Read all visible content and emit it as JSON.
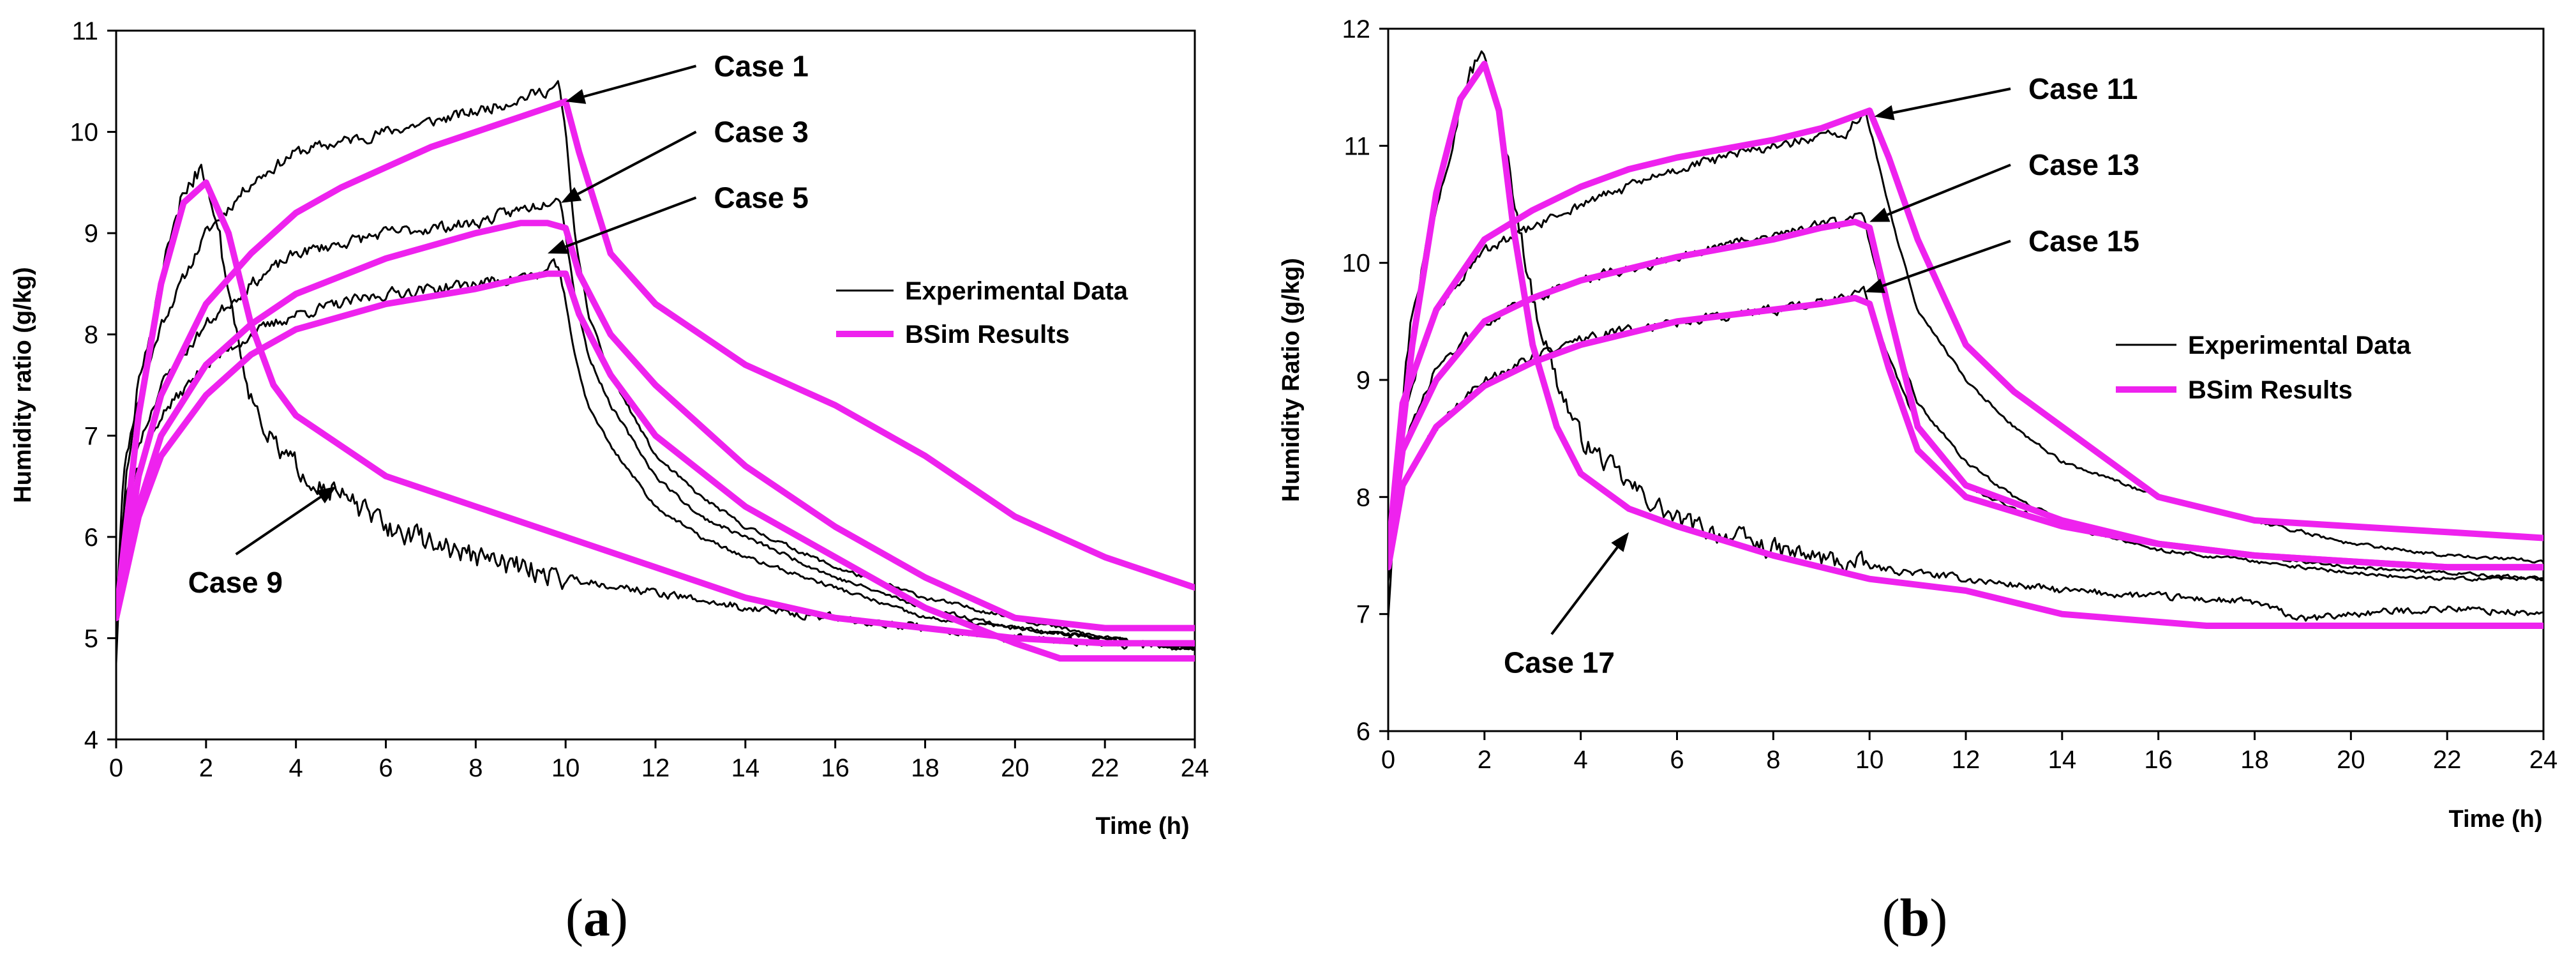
{
  "chart_data": [
    {
      "type": "line",
      "panel_label": "a",
      "xlabel": "Time (h)",
      "ylabel": "Humidity ratio (g/kg)",
      "xlim": [
        0,
        24
      ],
      "ylim": [
        4,
        11
      ],
      "xticks": [
        0,
        2,
        4,
        6,
        8,
        10,
        12,
        14,
        16,
        18,
        20,
        22,
        24
      ],
      "yticks": [
        4,
        5,
        6,
        7,
        8,
        9,
        10,
        11
      ],
      "grid": false,
      "legend": {
        "placement": "right-middle",
        "entries": [
          {
            "label": "Experimental Data",
            "color": "#000000"
          },
          {
            "label": "BSim Results",
            "color": "#ee22ee"
          }
        ]
      },
      "annotations": [
        {
          "text": "Case 1",
          "x": 13.3,
          "y": 10.55,
          "arrow_to": [
            10.0,
            10.3
          ]
        },
        {
          "text": "Case 3",
          "x": 13.3,
          "y": 9.9,
          "arrow_to": [
            9.9,
            9.3
          ]
        },
        {
          "text": "Case 5",
          "x": 13.3,
          "y": 9.25,
          "arrow_to": [
            9.6,
            8.8
          ]
        },
        {
          "text": "Case 9",
          "x": 1.6,
          "y": 5.45,
          "arrow_to": [
            4.9,
            6.5
          ]
        }
      ],
      "series": [
        {
          "kind": "Experimental Data",
          "color": "#000000",
          "noise": 0.09,
          "seed": 11,
          "x": [
            0,
            0.15,
            0.4,
            1.0,
            2.0,
            3.0,
            4.0,
            6.0,
            8.0,
            9.5,
            9.85,
            10.0,
            10.2,
            10.5,
            11,
            12,
            13,
            14,
            16,
            18,
            20,
            22,
            24
          ],
          "y": [
            5.2,
            6.6,
            7.2,
            8.1,
            9.0,
            9.5,
            9.8,
            10.0,
            10.2,
            10.4,
            10.45,
            10.0,
            9.0,
            8.2,
            7.6,
            6.8,
            6.4,
            6.1,
            5.7,
            5.4,
            5.2,
            5.0,
            4.9
          ]
        },
        {
          "kind": "Experimental Data",
          "color": "#000000",
          "noise": 0.09,
          "seed": 23,
          "x": [
            0,
            0.15,
            0.4,
            1.0,
            2.0,
            3.0,
            4.0,
            6.0,
            8.0,
            9.5,
            9.85,
            10.0,
            10.2,
            10.5,
            11,
            12,
            13,
            14,
            16,
            18,
            20,
            22,
            24
          ],
          "y": [
            5.2,
            6.2,
            6.8,
            7.5,
            8.1,
            8.5,
            8.8,
            9.0,
            9.1,
            9.3,
            9.4,
            9.0,
            8.4,
            7.8,
            7.3,
            6.6,
            6.2,
            6.0,
            5.6,
            5.3,
            5.1,
            5.0,
            4.9
          ]
        },
        {
          "kind": "Experimental Data",
          "color": "#000000",
          "noise": 0.09,
          "seed": 37,
          "x": [
            0,
            0.15,
            0.4,
            1.0,
            2.0,
            3.0,
            4.0,
            6.0,
            8.0,
            9.5,
            9.85,
            10.0,
            10.2,
            10.5,
            11,
            12,
            13,
            14,
            16,
            18,
            20,
            22,
            24
          ],
          "y": [
            5.2,
            6.0,
            6.6,
            7.2,
            7.7,
            8.0,
            8.2,
            8.4,
            8.5,
            8.6,
            8.7,
            8.3,
            7.8,
            7.3,
            6.9,
            6.3,
            6.0,
            5.8,
            5.5,
            5.2,
            5.1,
            5.0,
            4.9
          ]
        },
        {
          "kind": "Experimental Data",
          "color": "#000000",
          "noise": 0.18,
          "seed": 51,
          "x": [
            0,
            0.2,
            0.5,
            1.0,
            1.5,
            1.9,
            2.2,
            2.6,
            3.0,
            3.5,
            4.0,
            5.0,
            6.0,
            8.0,
            10.0,
            12.0,
            14.0,
            16.0,
            18.0,
            20.0,
            22.0,
            24.0
          ],
          "y": [
            4.8,
            6.5,
            7.5,
            8.5,
            9.4,
            9.7,
            9.2,
            8.2,
            7.4,
            6.9,
            6.7,
            6.4,
            6.1,
            5.8,
            5.6,
            5.45,
            5.3,
            5.2,
            5.1,
            5.0,
            4.95,
            4.9
          ]
        },
        {
          "kind": "BSim Results",
          "color": "#ee22ee",
          "x": [
            0,
            0.5,
            1.0,
            2.0,
            3.0,
            4.0,
            5.0,
            6.0,
            7.0,
            8.0,
            9.0,
            10.0,
            10.3,
            11,
            12,
            14,
            16,
            18,
            20,
            22,
            24
          ],
          "y": [
            5.2,
            6.6,
            7.4,
            8.3,
            8.8,
            9.2,
            9.45,
            9.65,
            9.85,
            10.0,
            10.15,
            10.3,
            9.8,
            8.8,
            8.3,
            7.7,
            7.3,
            6.8,
            6.2,
            5.8,
            5.5
          ]
        },
        {
          "kind": "BSim Results",
          "color": "#ee22ee",
          "x": [
            0,
            0.5,
            1.0,
            2.0,
            3.0,
            4.0,
            6.0,
            8.0,
            9.0,
            9.6,
            10.0,
            10.3,
            11,
            12,
            14,
            16,
            18,
            20,
            22,
            24
          ],
          "y": [
            5.2,
            6.3,
            7.0,
            7.7,
            8.1,
            8.4,
            8.75,
            9.0,
            9.1,
            9.1,
            9.05,
            8.6,
            8.0,
            7.5,
            6.7,
            6.1,
            5.6,
            5.2,
            5.1,
            5.1
          ]
        },
        {
          "kind": "BSim Results",
          "color": "#ee22ee",
          "x": [
            0,
            0.5,
            1.0,
            2.0,
            3.0,
            4.0,
            6.0,
            8.0,
            9.0,
            9.6,
            10.0,
            10.3,
            11,
            12,
            14,
            16,
            18,
            20,
            21,
            24
          ],
          "y": [
            5.2,
            6.2,
            6.8,
            7.4,
            7.8,
            8.05,
            8.3,
            8.45,
            8.55,
            8.6,
            8.6,
            8.2,
            7.6,
            7.0,
            6.3,
            5.8,
            5.3,
            4.95,
            4.8,
            4.8
          ]
        },
        {
          "kind": "BSim Results",
          "color": "#ee22ee",
          "x": [
            0,
            0.5,
            1.0,
            1.5,
            2.0,
            2.5,
            3.0,
            3.5,
            4.0,
            5.0,
            6.0,
            8.0,
            10.0,
            12.0,
            14.0,
            16.0,
            18.0,
            20.0,
            22.0,
            24.0
          ],
          "y": [
            5.2,
            7.2,
            8.5,
            9.3,
            9.5,
            9.0,
            8.1,
            7.5,
            7.2,
            6.9,
            6.6,
            6.3,
            6.0,
            5.7,
            5.4,
            5.2,
            5.1,
            5.0,
            4.95,
            4.95
          ]
        }
      ]
    },
    {
      "type": "line",
      "panel_label": "b",
      "xlabel": "Time (h)",
      "ylabel": "Humidity Ratio (g/kg)",
      "xlim": [
        0,
        24
      ],
      "ylim": [
        6,
        12
      ],
      "xticks": [
        0,
        2,
        4,
        6,
        8,
        10,
        12,
        14,
        16,
        18,
        20,
        22,
        24
      ],
      "yticks": [
        6,
        7,
        8,
        9,
        10,
        11,
        12
      ],
      "grid": false,
      "legend": {
        "placement": "right-middle",
        "entries": [
          {
            "label": "Experimental Data",
            "color": "#000000"
          },
          {
            "label": "BSim Results",
            "color": "#ee22ee"
          }
        ]
      },
      "annotations": [
        {
          "text": "Case 11",
          "x": 13.3,
          "y": 11.4,
          "arrow_to": [
            10.1,
            11.25
          ]
        },
        {
          "text": "Case 13",
          "x": 13.3,
          "y": 10.75,
          "arrow_to": [
            10.0,
            10.35
          ]
        },
        {
          "text": "Case 15",
          "x": 13.3,
          "y": 10.1,
          "arrow_to": [
            9.9,
            9.75
          ]
        },
        {
          "text": "Case 17",
          "x": 2.4,
          "y": 6.5,
          "arrow_to": [
            5.0,
            7.7
          ]
        }
      ],
      "series": [
        {
          "kind": "Experimental Data",
          "color": "#000000",
          "noise": 0.07,
          "seed": 61,
          "x": [
            0,
            0.3,
            1.0,
            2.0,
            3.0,
            4.0,
            6.0,
            8.0,
            9.5,
            9.9,
            10.1,
            10.5,
            11,
            12,
            13,
            14,
            16,
            18,
            20,
            22,
            24
          ],
          "y": [
            7.4,
            8.7,
            9.6,
            10.1,
            10.3,
            10.5,
            10.8,
            11.0,
            11.1,
            11.3,
            11.0,
            10.3,
            9.6,
            9.0,
            8.6,
            8.3,
            8.0,
            7.8,
            7.6,
            7.5,
            7.45
          ]
        },
        {
          "kind": "Experimental Data",
          "color": "#000000",
          "noise": 0.07,
          "seed": 73,
          "x": [
            0,
            0.3,
            1.0,
            2.0,
            3.0,
            4.0,
            6.0,
            8.0,
            9.5,
            9.9,
            10.1,
            10.5,
            11,
            12,
            13,
            14,
            16,
            18,
            20,
            22,
            24
          ],
          "y": [
            7.4,
            8.4,
            9.1,
            9.5,
            9.7,
            9.85,
            10.05,
            10.25,
            10.35,
            10.4,
            10.0,
            9.4,
            8.8,
            8.3,
            8.0,
            7.8,
            7.6,
            7.5,
            7.4,
            7.35,
            7.3
          ]
        },
        {
          "kind": "Experimental Data",
          "color": "#000000",
          "noise": 0.07,
          "seed": 89,
          "x": [
            0,
            0.3,
            1.0,
            2.0,
            3.0,
            4.0,
            6.0,
            8.0,
            9.5,
            9.9,
            10.1,
            10.5,
            11,
            12,
            13,
            14,
            16,
            18,
            20,
            22,
            24
          ],
          "y": [
            7.3,
            8.1,
            8.6,
            9.0,
            9.2,
            9.35,
            9.5,
            9.6,
            9.7,
            9.75,
            9.5,
            9.1,
            8.6,
            8.1,
            7.9,
            7.75,
            7.55,
            7.45,
            7.35,
            7.3,
            7.3
          ]
        },
        {
          "kind": "Experimental Data",
          "color": "#000000",
          "noise": 0.14,
          "seed": 97,
          "x": [
            0,
            0.2,
            0.5,
            1.0,
            1.5,
            1.9,
            2.2,
            2.6,
            3.0,
            3.5,
            4.0,
            5.0,
            6.0,
            8.0,
            10.0,
            12.0,
            14.0,
            16.0,
            18.0,
            19.0,
            20.0,
            22.0,
            24.0
          ],
          "y": [
            7.0,
            8.5,
            9.6,
            10.5,
            11.4,
            11.8,
            11.5,
            10.6,
            9.7,
            9.0,
            8.5,
            8.1,
            7.8,
            7.55,
            7.4,
            7.3,
            7.2,
            7.15,
            7.1,
            6.95,
            7.0,
            7.05,
            7.0
          ]
        },
        {
          "kind": "BSim Results",
          "color": "#ee22ee",
          "x": [
            0,
            0.3,
            1.0,
            2.0,
            3.0,
            4.0,
            5.0,
            6.0,
            8.0,
            9.0,
            10.0,
            10.4,
            11,
            12,
            13,
            14,
            16,
            18,
            20,
            22,
            24
          ],
          "y": [
            7.5,
            8.8,
            9.6,
            10.2,
            10.45,
            10.65,
            10.8,
            10.9,
            11.05,
            11.15,
            11.3,
            10.9,
            10.2,
            9.3,
            8.9,
            8.6,
            8.0,
            7.8,
            7.75,
            7.7,
            7.65
          ]
        },
        {
          "kind": "BSim Results",
          "color": "#ee22ee",
          "x": [
            0,
            0.3,
            1.0,
            2.0,
            3.0,
            4.0,
            6.0,
            8.0,
            9.0,
            9.7,
            10.0,
            10.4,
            11,
            12,
            14,
            16,
            18,
            20,
            22,
            24
          ],
          "y": [
            7.5,
            8.4,
            9.0,
            9.5,
            9.7,
            9.85,
            10.05,
            10.2,
            10.3,
            10.35,
            10.3,
            9.6,
            8.6,
            8.1,
            7.8,
            7.6,
            7.5,
            7.45,
            7.4,
            7.4
          ]
        },
        {
          "kind": "BSim Results",
          "color": "#ee22ee",
          "x": [
            0,
            0.3,
            1.0,
            2.0,
            3.0,
            4.0,
            6.0,
            8.0,
            9.0,
            9.7,
            10.0,
            10.4,
            11,
            12,
            14,
            16,
            18,
            20,
            22,
            24
          ],
          "y": [
            7.4,
            8.1,
            8.6,
            8.95,
            9.15,
            9.3,
            9.5,
            9.6,
            9.65,
            9.7,
            9.65,
            9.1,
            8.4,
            8.0,
            7.75,
            7.6,
            7.5,
            7.45,
            7.4,
            7.4
          ]
        },
        {
          "kind": "BSim Results",
          "color": "#ee22ee",
          "x": [
            0,
            0.5,
            1.0,
            1.5,
            2.0,
            2.3,
            2.6,
            3.0,
            3.5,
            4.0,
            5.0,
            6.0,
            8.0,
            10.0,
            12.0,
            14.0,
            17.0,
            20.0,
            24.0
          ],
          "y": [
            7.5,
            9.3,
            10.6,
            11.4,
            11.7,
            11.3,
            10.3,
            9.3,
            8.6,
            8.2,
            7.9,
            7.75,
            7.5,
            7.3,
            7.2,
            7.0,
            6.9,
            6.9,
            6.9
          ]
        }
      ]
    }
  ]
}
